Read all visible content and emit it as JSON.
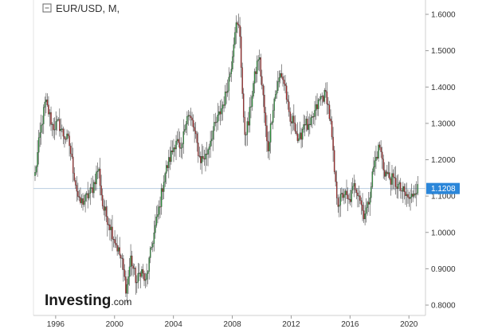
{
  "header": {
    "symbol_title": "EUR/USD, M,"
  },
  "brand": {
    "name": "Investing",
    "suffix": ".com"
  },
  "chart_data": {
    "type": "candlestick",
    "interval": "monthly",
    "x_ticks": [
      "1996",
      "2000",
      "2004",
      "2008",
      "2012",
      "2016",
      "2020"
    ],
    "y_ticks": [
      "1.6000",
      "1.5000",
      "1.4000",
      "1.3000",
      "1.2000",
      "1.1000",
      "1.0000",
      "0.9000",
      "0.8000"
    ],
    "ylim": [
      0.78,
      1.63
    ],
    "xlim": [
      1994.6,
      2020.8
    ],
    "current_price": "1.1208",
    "current_price_value": 1.1208,
    "colors": {
      "up": "#2e9e3e",
      "down": "#b92b2b",
      "wick": "#333333",
      "price_line": "#b9cde0",
      "price_badge": "#2b86d9",
      "axis": "#cfcfcf"
    },
    "anchors": [
      [
        1994.6,
        1.16
      ],
      [
        1994.9,
        1.26
      ],
      [
        1995.3,
        1.36
      ],
      [
        1995.6,
        1.32
      ],
      [
        1995.8,
        1.29
      ],
      [
        1996.2,
        1.3
      ],
      [
        1996.5,
        1.27
      ],
      [
        1996.9,
        1.25
      ],
      [
        1997.2,
        1.17
      ],
      [
        1997.6,
        1.08
      ],
      [
        1998.0,
        1.09
      ],
      [
        1998.5,
        1.12
      ],
      [
        1998.9,
        1.18
      ],
      [
        1999.2,
        1.07
      ],
      [
        1999.6,
        1.03
      ],
      [
        2000.0,
        0.98
      ],
      [
        2000.5,
        0.92
      ],
      [
        2000.8,
        0.84
      ],
      [
        2001.1,
        0.93
      ],
      [
        2001.5,
        0.86
      ],
      [
        2001.8,
        0.9
      ],
      [
        2002.1,
        0.86
      ],
      [
        2002.6,
        0.98
      ],
      [
        2003.0,
        1.06
      ],
      [
        2003.4,
        1.16
      ],
      [
        2003.9,
        1.22
      ],
      [
        2004.2,
        1.26
      ],
      [
        2004.5,
        1.21
      ],
      [
        2004.9,
        1.33
      ],
      [
        2005.3,
        1.3
      ],
      [
        2005.8,
        1.2
      ],
      [
        2006.2,
        1.21
      ],
      [
        2006.6,
        1.27
      ],
      [
        2007.0,
        1.31
      ],
      [
        2007.5,
        1.37
      ],
      [
        2007.9,
        1.45
      ],
      [
        2008.2,
        1.57
      ],
      [
        2008.5,
        1.56
      ],
      [
        2008.8,
        1.27
      ],
      [
        2009.1,
        1.3
      ],
      [
        2009.4,
        1.4
      ],
      [
        2009.8,
        1.49
      ],
      [
        2010.1,
        1.37
      ],
      [
        2010.4,
        1.22
      ],
      [
        2010.8,
        1.36
      ],
      [
        2011.3,
        1.44
      ],
      [
        2011.6,
        1.4
      ],
      [
        2011.9,
        1.3
      ],
      [
        2012.2,
        1.31
      ],
      [
        2012.5,
        1.24
      ],
      [
        2012.9,
        1.31
      ],
      [
        2013.2,
        1.28
      ],
      [
        2013.6,
        1.33
      ],
      [
        2014.0,
        1.37
      ],
      [
        2014.4,
        1.38
      ],
      [
        2014.7,
        1.29
      ],
      [
        2015.0,
        1.13
      ],
      [
        2015.2,
        1.08
      ],
      [
        2015.6,
        1.11
      ],
      [
        2015.9,
        1.08
      ],
      [
        2016.3,
        1.13
      ],
      [
        2016.6,
        1.11
      ],
      [
        2016.9,
        1.05
      ],
      [
        2017.2,
        1.07
      ],
      [
        2017.6,
        1.18
      ],
      [
        2018.0,
        1.24
      ],
      [
        2018.3,
        1.17
      ],
      [
        2018.7,
        1.15
      ],
      [
        2019.0,
        1.14
      ],
      [
        2019.4,
        1.12
      ],
      [
        2019.8,
        1.1
      ],
      [
        2020.1,
        1.09
      ],
      [
        2020.4,
        1.12
      ],
      [
        2020.6,
        1.12
      ]
    ]
  }
}
